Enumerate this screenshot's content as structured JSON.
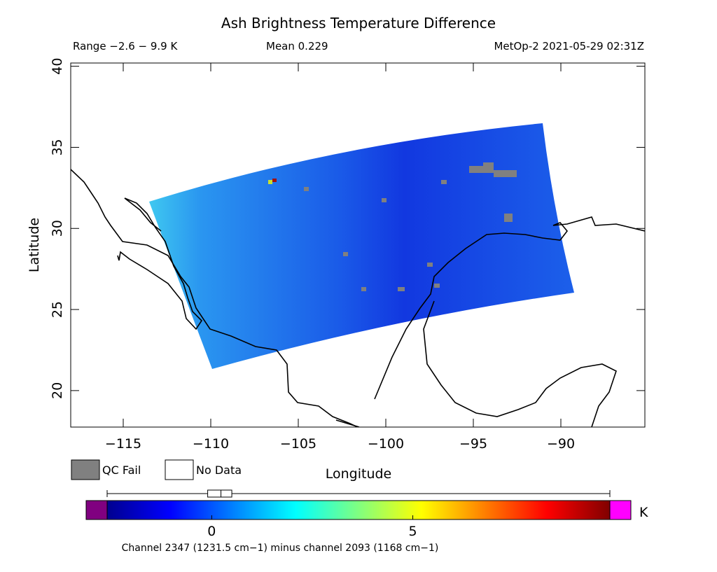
{
  "chart_data": {
    "type": "map",
    "title": "Ash Brightness Temperature Difference",
    "range_text": "Range −2.6 − 9.9 K",
    "mean_text": "Mean 0.229",
    "satellite_text": "MetOp-2 2021-05-29 02:31Z",
    "xlabel": "Longitude",
    "ylabel": "Latitude",
    "xlim": [
      -118,
      -85.2
    ],
    "ylim": [
      17.75,
      40.2
    ],
    "xticks": [
      {
        "value": -115,
        "label": "−115"
      },
      {
        "value": -110,
        "label": "−110"
      },
      {
        "value": -105,
        "label": "−105"
      },
      {
        "value": -100,
        "label": "−100"
      },
      {
        "value": -95,
        "label": "−95"
      },
      {
        "value": -90,
        "label": "−90"
      }
    ],
    "yticks": [
      20,
      25,
      30,
      35,
      40
    ],
    "legend": [
      {
        "name": "QC Fail",
        "color": "#808080"
      },
      {
        "name": "No Data",
        "color": "#ffffff"
      }
    ],
    "colorbar": {
      "lim": [
        -2.6,
        9.9
      ],
      "ticks": [
        0,
        5
      ],
      "unit": "K",
      "under_color": "#800080",
      "over_color": "#ff00ff",
      "colors": [
        "#00008f",
        "#0000ff",
        "#0080ff",
        "#00ffff",
        "#80ff80",
        "#ffff00",
        "#ff8000",
        "#ff0000",
        "#800000"
      ],
      "box": {
        "whiskers": [
          -2.6,
          9.9
        ],
        "quartiles": [
          -0.1,
          0.5
        ],
        "median": 0.23
      }
    },
    "caption": "Channel 2347 (1231.5 cm−1) minus channel 2093 (1168 cm−1)"
  }
}
